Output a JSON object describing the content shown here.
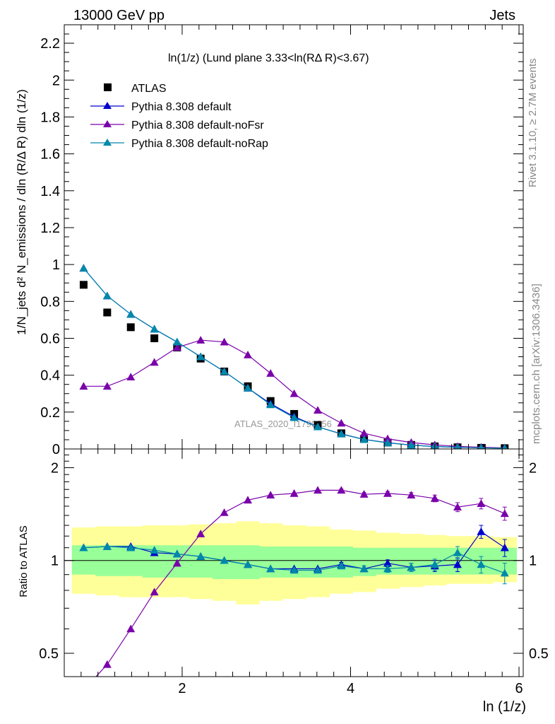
{
  "header": {
    "left": "13000 GeV pp",
    "right": "Jets"
  },
  "plot_title": "ln(1/z) (Lund plane 3.33<ln(RΔ R)<3.67)",
  "side_labels": {
    "rivet": "Rivet 3.1.10, ≥ 2.7M events",
    "mcplots": "mcplots.cern.ch [arXiv:1306.3436]"
  },
  "watermark": "ATLAS_2020_I1790256",
  "colors": {
    "atlas": "#000000",
    "default": "#0000cc",
    "noFsr": "#7a00aa",
    "noRap": "#0088aa",
    "band_inner": "#99ff99",
    "band_outer": "#ffff99"
  },
  "chart_data": [
    {
      "type": "scatter",
      "panel": "main",
      "xlabel": "ln (1/z)",
      "ylabel": "1/N_jets d² N_emissions / dln (R/Δ R) dln (1/z)",
      "xlim": [
        0.6,
        6.05
      ],
      "ylim": [
        0,
        2.3
      ],
      "y_ticks": [
        0,
        0.2,
        0.4,
        0.6,
        0.8,
        1,
        1.2,
        1.4,
        1.6,
        1.8,
        2,
        2.2
      ],
      "y_tick_labels": [
        "0",
        "0.2",
        "0.4",
        "0.6",
        "0.8",
        "1",
        "1.2",
        "1.4",
        "1.6",
        "1.8",
        "2",
        "2.2"
      ],
      "x_ticks": [
        2,
        4,
        6
      ],
      "legend_position": "top-left",
      "x": [
        0.83,
        1.11,
        1.39,
        1.67,
        1.94,
        2.22,
        2.5,
        2.78,
        3.05,
        3.33,
        3.61,
        3.89,
        4.16,
        4.44,
        4.72,
        5.0,
        5.27,
        5.55,
        5.83
      ],
      "series": [
        {
          "name": "ATLAS",
          "style": "square",
          "color_key": "atlas",
          "values": [
            0.89,
            0.74,
            0.66,
            0.6,
            0.55,
            0.49,
            0.42,
            0.34,
            0.26,
            0.19,
            0.13,
            0.085,
            0.055,
            0.035,
            0.022,
            0.014,
            0.009,
            0.006,
            0.004
          ]
        },
        {
          "name": "Pythia 8.308 default",
          "style": "triangle",
          "color_key": "default",
          "values": [
            0.98,
            0.83,
            0.73,
            0.65,
            0.58,
            0.5,
            0.42,
            0.33,
            0.245,
            0.175,
            0.12,
            0.082,
            0.052,
            0.034,
            0.021,
            0.013,
            0.009,
            0.007,
            0.004
          ]
        },
        {
          "name": "Pythia 8.308 default-noFsr",
          "style": "triangle",
          "color_key": "noFsr",
          "values": [
            0.34,
            0.34,
            0.39,
            0.47,
            0.55,
            0.59,
            0.58,
            0.51,
            0.41,
            0.3,
            0.21,
            0.14,
            0.085,
            0.055,
            0.035,
            0.022,
            0.014,
            0.009,
            0.006
          ]
        },
        {
          "name": "Pythia 8.308 default-noRap",
          "style": "triangle",
          "color_key": "noRap",
          "values": [
            0.98,
            0.83,
            0.73,
            0.65,
            0.58,
            0.5,
            0.42,
            0.33,
            0.24,
            0.17,
            0.12,
            0.081,
            0.051,
            0.033,
            0.021,
            0.013,
            0.009,
            0.006,
            0.004
          ]
        }
      ]
    },
    {
      "type": "line",
      "panel": "ratio",
      "xlabel": "ln (1/z)",
      "ylabel": "Ratio to ATLAS",
      "xlim": [
        0.6,
        6.05
      ],
      "ylim": [
        0.42,
        2.3
      ],
      "y_scale": "log",
      "y_tick_labels": [
        "0.5",
        "1",
        "2"
      ],
      "y_ticks": [
        0.5,
        1,
        2
      ],
      "x_ticks": [
        2,
        4,
        6
      ],
      "x_tick_labels": [
        "2",
        "4",
        "6"
      ],
      "x": [
        0.83,
        1.11,
        1.39,
        1.67,
        1.94,
        2.22,
        2.5,
        2.78,
        3.05,
        3.33,
        3.61,
        3.89,
        4.16,
        4.44,
        4.72,
        5.0,
        5.27,
        5.55,
        5.83
      ],
      "band_inner": [
        [
          0.9,
          1.12
        ],
        [
          0.89,
          1.12
        ],
        [
          0.89,
          1.12
        ],
        [
          0.88,
          1.12
        ],
        [
          0.88,
          1.12
        ],
        [
          0.88,
          1.12
        ],
        [
          0.87,
          1.12
        ],
        [
          0.87,
          1.12
        ],
        [
          0.88,
          1.11
        ],
        [
          0.88,
          1.11
        ],
        [
          0.88,
          1.11
        ],
        [
          0.88,
          1.11
        ],
        [
          0.89,
          1.1
        ],
        [
          0.9,
          1.1
        ],
        [
          0.9,
          1.1
        ],
        [
          0.9,
          1.1
        ],
        [
          0.9,
          1.1
        ],
        [
          0.9,
          1.1
        ],
        [
          0.9,
          1.1
        ]
      ],
      "band_outer": [
        [
          0.78,
          1.28
        ],
        [
          0.77,
          1.29
        ],
        [
          0.76,
          1.29
        ],
        [
          0.76,
          1.3
        ],
        [
          0.76,
          1.3
        ],
        [
          0.75,
          1.31
        ],
        [
          0.74,
          1.32
        ],
        [
          0.72,
          1.34
        ],
        [
          0.74,
          1.32
        ],
        [
          0.75,
          1.3
        ],
        [
          0.76,
          1.29
        ],
        [
          0.78,
          1.26
        ],
        [
          0.79,
          1.25
        ],
        [
          0.81,
          1.23
        ],
        [
          0.82,
          1.22
        ],
        [
          0.83,
          1.21
        ],
        [
          0.84,
          1.2
        ],
        [
          0.84,
          1.2
        ],
        [
          0.85,
          1.19
        ]
      ],
      "series": [
        {
          "name": "Pythia 8.308 default",
          "color_key": "default",
          "values": [
            1.1,
            1.11,
            1.11,
            1.06,
            1.05,
            1.03,
            1.0,
            0.97,
            0.94,
            0.94,
            0.94,
            0.97,
            0.94,
            0.98,
            0.95,
            0.96,
            0.97,
            1.24,
            1.1
          ],
          "errors": [
            0.01,
            0.01,
            0.01,
            0.01,
            0.01,
            0.01,
            0.01,
            0.01,
            0.01,
            0.01,
            0.01,
            0.015,
            0.02,
            0.025,
            0.03,
            0.04,
            0.05,
            0.06,
            0.07
          ]
        },
        {
          "name": "Pythia 8.308 default-noFsr",
          "color_key": "noFsr",
          "values": [
            0.38,
            0.46,
            0.6,
            0.79,
            0.98,
            1.22,
            1.43,
            1.57,
            1.63,
            1.65,
            1.69,
            1.69,
            1.64,
            1.65,
            1.63,
            1.59,
            1.49,
            1.53,
            1.42
          ],
          "errors": [
            0.01,
            0.01,
            0.01,
            0.01,
            0.01,
            0.01,
            0.01,
            0.01,
            0.01,
            0.01,
            0.01,
            0.015,
            0.02,
            0.025,
            0.03,
            0.04,
            0.05,
            0.06,
            0.07
          ]
        },
        {
          "name": "Pythia 8.308 default-noRap",
          "color_key": "noRap",
          "values": [
            1.1,
            1.11,
            1.1,
            1.08,
            1.05,
            1.03,
            1.0,
            0.97,
            0.94,
            0.93,
            0.93,
            0.96,
            0.94,
            0.94,
            0.95,
            0.97,
            1.06,
            0.97,
            0.91
          ],
          "errors": [
            0.01,
            0.01,
            0.01,
            0.01,
            0.01,
            0.01,
            0.01,
            0.01,
            0.01,
            0.01,
            0.01,
            0.015,
            0.02,
            0.025,
            0.03,
            0.04,
            0.05,
            0.06,
            0.07
          ]
        }
      ]
    }
  ]
}
